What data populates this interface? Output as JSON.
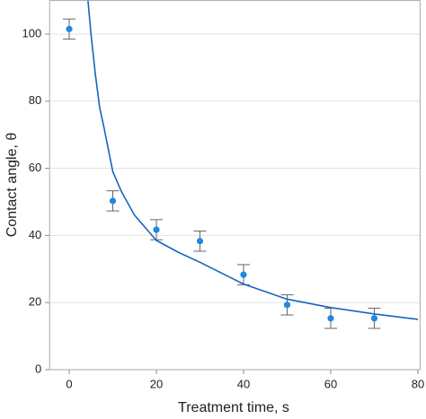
{
  "chart_data": {
    "type": "scatter",
    "xlabel": "Treatment time, s",
    "ylabel": "Contact angle, θ",
    "xlim": [
      -4.5,
      80.5
    ],
    "ylim": [
      0,
      110
    ],
    "xticks": [
      0,
      20,
      40,
      60,
      80
    ],
    "yticks": [
      0,
      20,
      40,
      60,
      80,
      100
    ],
    "grid": true,
    "series": [
      {
        "type": "scatter",
        "color": "#1e88e5",
        "error_color": "#666666",
        "x": [
          0,
          10,
          20,
          30,
          40,
          50,
          60,
          70
        ],
        "values": [
          101.5,
          50.3,
          41.7,
          38.3,
          28.3,
          19.3,
          15.3,
          15.3
        ],
        "errors": [
          3,
          3,
          3,
          3,
          3,
          3,
          3,
          3
        ]
      },
      {
        "type": "line",
        "color": "#1565c0",
        "x": [
          4.3,
          5,
          6,
          7,
          8,
          10,
          12,
          15,
          20,
          25,
          30,
          40,
          50,
          60,
          70,
          80
        ],
        "values": [
          110,
          100,
          88,
          78,
          72,
          59,
          53,
          46,
          38.5,
          35,
          32,
          25.5,
          21,
          18.5,
          16.6,
          15
        ]
      }
    ]
  }
}
